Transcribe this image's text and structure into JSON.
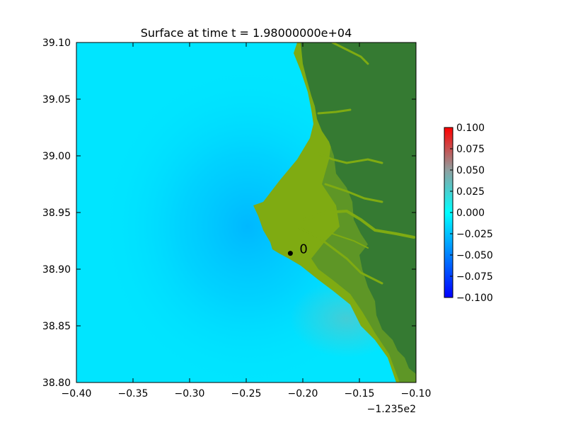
{
  "chart_data": {
    "type": "heatmap",
    "title": "Surface at time t = 1.98000000e+04",
    "xlabel": "",
    "ylabel": "",
    "xlim": [
      -0.4,
      -0.1
    ],
    "ylim": [
      38.8,
      39.1
    ],
    "x_offset_label": "−1.235e2",
    "x_ticks": [
      {
        "value": -0.4,
        "label": "−0.40"
      },
      {
        "value": -0.35,
        "label": "−0.35"
      },
      {
        "value": -0.3,
        "label": "−0.30"
      },
      {
        "value": -0.25,
        "label": "−0.25"
      },
      {
        "value": -0.2,
        "label": "−0.20"
      },
      {
        "value": -0.15,
        "label": "−0.15"
      },
      {
        "value": -0.1,
        "label": "−0.10"
      }
    ],
    "y_ticks": [
      {
        "value": 38.8,
        "label": "38.80"
      },
      {
        "value": 38.85,
        "label": "38.85"
      },
      {
        "value": 38.9,
        "label": "38.90"
      },
      {
        "value": 38.95,
        "label": "38.95"
      },
      {
        "value": 39.0,
        "label": "39.00"
      },
      {
        "value": 39.05,
        "label": "39.05"
      },
      {
        "value": 39.1,
        "label": "39.10"
      }
    ],
    "colorbar": {
      "range": [
        -0.1,
        0.1
      ],
      "ticks": [
        {
          "value": 0.1,
          "label": "0.100"
        },
        {
          "value": 0.075,
          "label": "0.075"
        },
        {
          "value": 0.05,
          "label": "0.050"
        },
        {
          "value": 0.025,
          "label": "0.025"
        },
        {
          "value": 0.0,
          "label": "0.000"
        },
        {
          "value": -0.025,
          "label": "−0.025"
        },
        {
          "value": -0.05,
          "label": "−0.050"
        },
        {
          "value": -0.075,
          "label": "−0.075"
        },
        {
          "value": -0.1,
          "label": "−0.100"
        }
      ],
      "colors": [
        "#0000ff",
        "#00bfff",
        "#00ffff",
        "#8fa0a0",
        "#ff0000"
      ]
    },
    "gauges": [
      {
        "label": "0",
        "x": -0.211,
        "y": 38.914
      }
    ],
    "land_colors": {
      "land": "#357a32",
      "lowland": "#7fab12",
      "mid": "#5e9626"
    },
    "water_color": "#00e5ff",
    "water_low_color": "#00b8ff",
    "water_high_color": "#4fc9cf"
  }
}
